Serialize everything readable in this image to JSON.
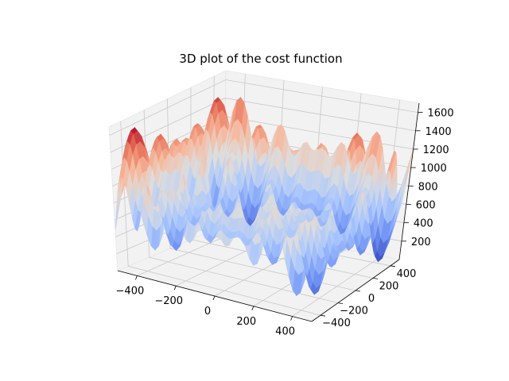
{
  "chart_data": {
    "type": "surface3d",
    "title": "3D plot of the cost function",
    "colormap": "coolwarm",
    "colormap_stops": [
      "#3b4cc0",
      "#6f92f3",
      "#aac7fd",
      "#dddddd",
      "#f7b89c",
      "#e7745b",
      "#b40426"
    ],
    "pane_color": "#f2f2f2",
    "grid": true,
    "x_axis": {
      "range": [
        -500,
        500
      ],
      "ticks": [
        -400,
        -200,
        0,
        200,
        400
      ],
      "tick_labels": [
        "−400",
        "−200",
        "0",
        "200",
        "400"
      ]
    },
    "y_axis": {
      "range": [
        -500,
        500
      ],
      "ticks": [
        -400,
        -200,
        0,
        200,
        400
      ],
      "tick_labels": [
        "−400",
        "−200",
        "0",
        "200",
        "400"
      ]
    },
    "z_axis": {
      "range": [
        0,
        1700
      ],
      "ticks": [
        200,
        400,
        600,
        800,
        1000,
        1200,
        1400,
        1600
      ],
      "tick_labels": [
        "200",
        "400",
        "600",
        "800",
        "1000",
        "1200",
        "1400",
        "1600"
      ]
    },
    "surface_function": "418.9829*2 - x*sin(sqrt(|x|)) - y*sin(sqrt(|y|))",
    "value_range": [
      0,
      1676
    ]
  }
}
